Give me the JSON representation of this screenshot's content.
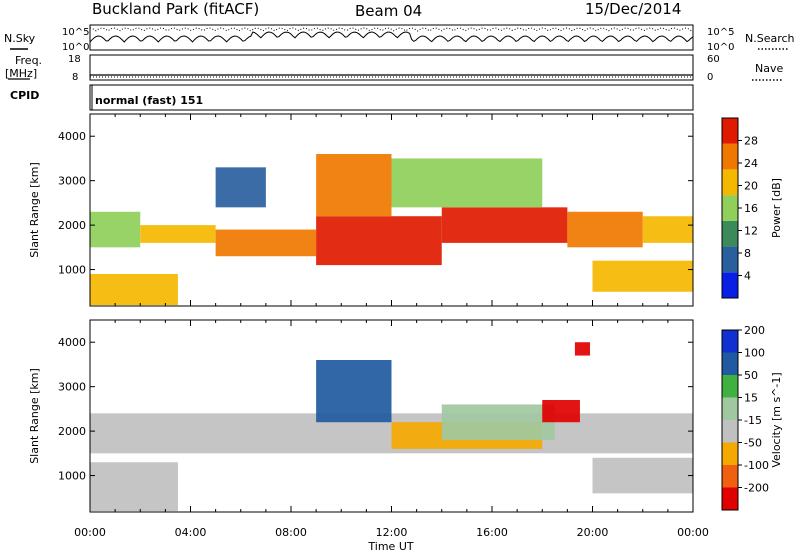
{
  "header": {
    "station": "Buckland Park (fitACF)",
    "beam": "Beam 04",
    "date": "15/Dec/2014"
  },
  "top_panels": {
    "nsky_label": "N.Sky",
    "nsearch_label": "N.Search",
    "freq_label_1": "Freq.",
    "freq_label_2": "[MHz]",
    "nave_label": "Nave",
    "cpid_label": "CPID",
    "count_ticks": [
      "10^5",
      "10^0"
    ],
    "freq_ticks": [
      "18",
      "8"
    ],
    "nave_ticks": [
      "60",
      "0"
    ],
    "cpid_text": "normal (fast) 151"
  },
  "chart_data": [
    {
      "type": "heatmap",
      "ylabel": "Slant Range [km]",
      "colorbar_label": "Power [dB]",
      "ylim": [
        180,
        4500
      ],
      "yticks": [
        1000,
        2000,
        3000,
        4000
      ],
      "xlim_hours": [
        0,
        24
      ],
      "colorbar_ticks": [
        "4",
        "8",
        "12",
        "16",
        "20",
        "24",
        "28"
      ],
      "colorbar_range": [
        0,
        32
      ],
      "colors": [
        "#0a1fe6",
        "#2a5f9e",
        "#3a8a5a",
        "#8fcf5a",
        "#f5b800",
        "#f07800",
        "#e01a00"
      ],
      "bands": [
        {
          "time": [
            0.0,
            2.0
          ],
          "range": [
            1500,
            2300
          ],
          "value": 18
        },
        {
          "time": [
            2.0,
            5.0
          ],
          "range": [
            1600,
            2000
          ],
          "value": 20
        },
        {
          "time": [
            5.0,
            9.0
          ],
          "range": [
            1300,
            1900
          ],
          "value": 26
        },
        {
          "time": [
            9.0,
            14.0
          ],
          "range": [
            1100,
            2200
          ],
          "value": 29
        },
        {
          "time": [
            14.0,
            19.0
          ],
          "range": [
            1600,
            2400
          ],
          "value": 28
        },
        {
          "time": [
            19.0,
            22.0
          ],
          "range": [
            1500,
            2300
          ],
          "value": 26
        },
        {
          "time": [
            22.0,
            24.0
          ],
          "range": [
            1600,
            2200
          ],
          "value": 20
        },
        {
          "time": [
            0.0,
            3.5
          ],
          "range": [
            200,
            900
          ],
          "value": 22
        },
        {
          "time": [
            20.0,
            24.0
          ],
          "range": [
            500,
            1200
          ],
          "value": 22
        },
        {
          "time": [
            9.0,
            12.0
          ],
          "range": [
            2200,
            3600
          ],
          "value": 24
        },
        {
          "time": [
            12.0,
            18.0
          ],
          "range": [
            2400,
            3500
          ],
          "value": 14
        },
        {
          "time": [
            5.0,
            7.0
          ],
          "range": [
            2400,
            3300
          ],
          "value": 8
        }
      ]
    },
    {
      "type": "heatmap",
      "ylabel": "Slant Range [km]",
      "xlabel": "Time UT",
      "colorbar_label": "Velocity [m s^-1]",
      "ylim": [
        180,
        4500
      ],
      "yticks": [
        1000,
        2000,
        3000,
        4000
      ],
      "xlim_hours": [
        0,
        24
      ],
      "xticks": [
        "00:00",
        "04:00",
        "08:00",
        "12:00",
        "16:00",
        "20:00",
        "00:00"
      ],
      "colorbar_ticks": [
        "-200",
        "-100",
        "-50",
        "-15",
        "15",
        "50",
        "100",
        "200"
      ],
      "colors": [
        "#e00000",
        "#f06010",
        "#f5a800",
        "#c0c0c0",
        "#a0c8a0",
        "#40b040",
        "#205aa0",
        "#1030d0"
      ],
      "bands": [
        {
          "time": [
            0.0,
            24.0
          ],
          "range": [
            1500,
            2400
          ],
          "value": 0
        },
        {
          "time": [
            0.0,
            3.5
          ],
          "range": [
            200,
            1300
          ],
          "value": 0
        },
        {
          "time": [
            20.0,
            24.0
          ],
          "range": [
            600,
            1400
          ],
          "value": 0
        },
        {
          "time": [
            9.0,
            12.0
          ],
          "range": [
            2200,
            3600
          ],
          "value": 150
        },
        {
          "time": [
            12.0,
            18.0
          ],
          "range": [
            1600,
            2200
          ],
          "value": -50
        },
        {
          "time": [
            14.0,
            18.5
          ],
          "range": [
            1800,
            2600
          ],
          "value": 40
        },
        {
          "time": [
            18.0,
            19.5
          ],
          "range": [
            2200,
            2700
          ],
          "value": -150
        },
        {
          "time": [
            19.3,
            19.9
          ],
          "range": [
            3700,
            4000
          ],
          "value": -220
        }
      ]
    }
  ]
}
